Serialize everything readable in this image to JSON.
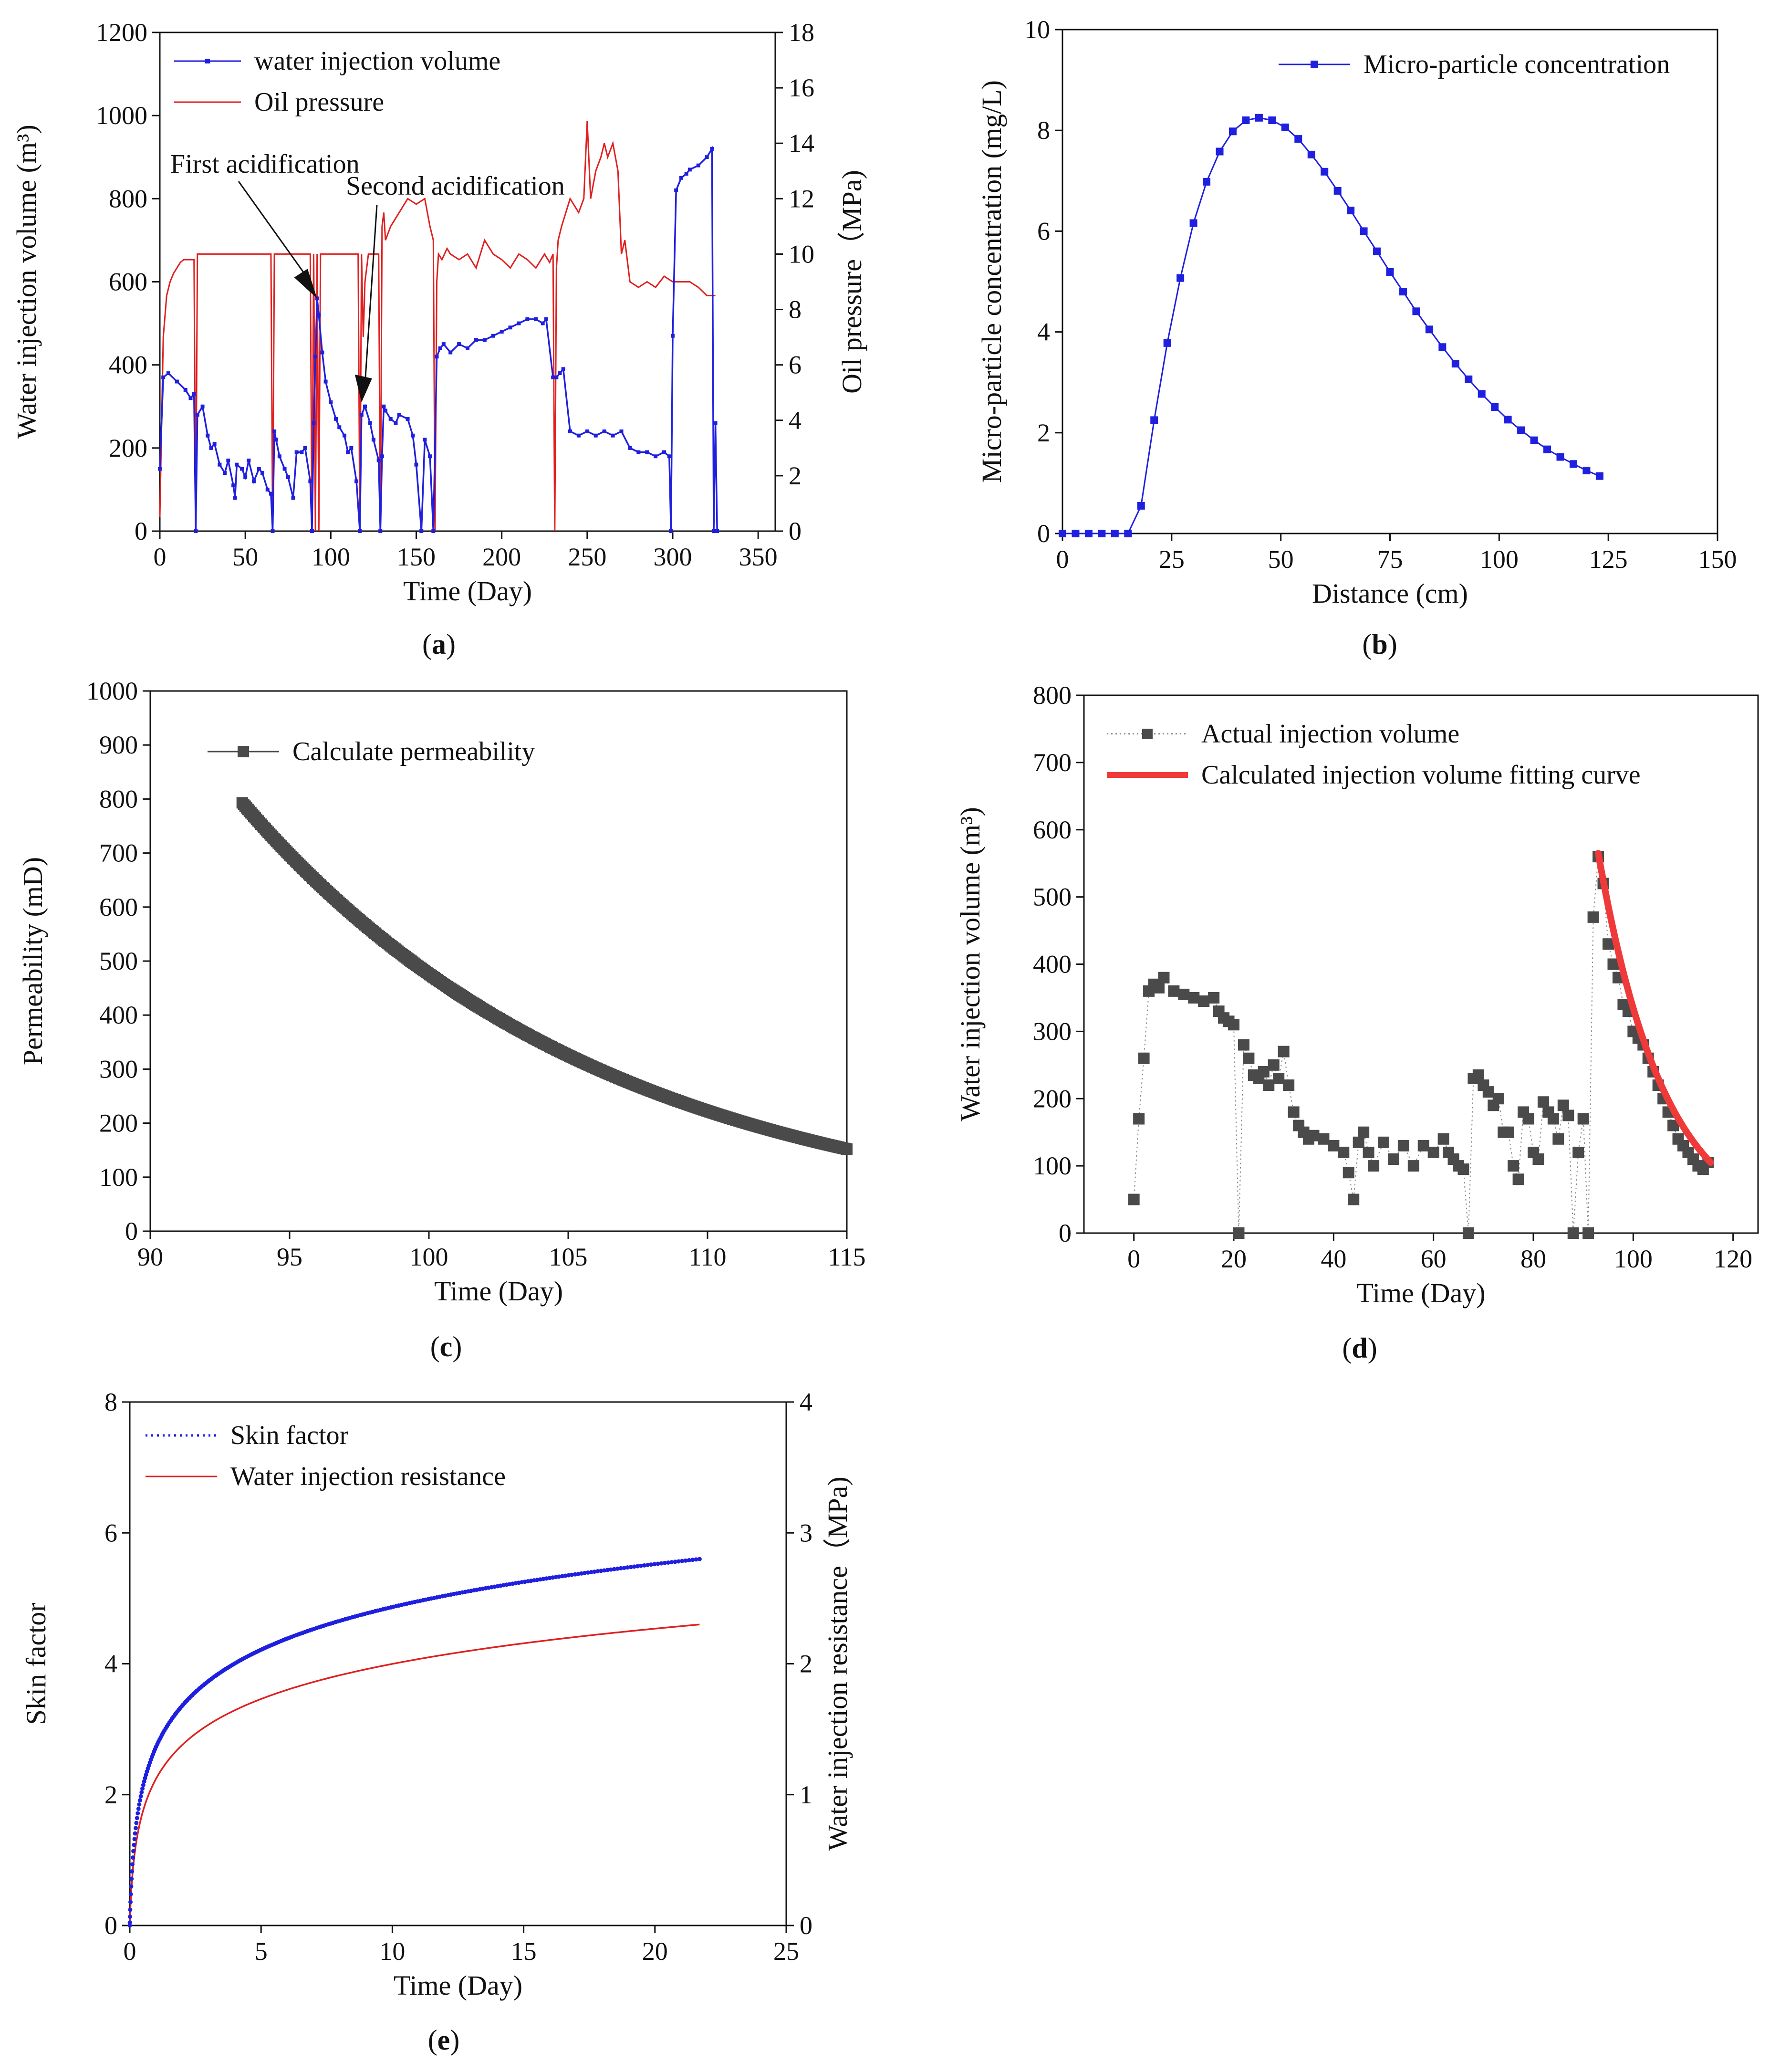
{
  "colors": {
    "blue": "#1f1fe0",
    "red": "#e02020",
    "dark": "#4a4a4a",
    "fit": "#f03a3a",
    "axis": "#111111"
  },
  "chart_data": [
    {
      "id": "a",
      "type": "line",
      "caption": "(a)",
      "xlabel": "Time (Day)",
      "xlim": [
        0,
        360
      ],
      "xticks": [
        0,
        50,
        100,
        150,
        200,
        250,
        300,
        350
      ],
      "ylabel": "Water injection volume (m³)",
      "ylim": [
        0,
        1200
      ],
      "yticks": [
        0,
        200,
        400,
        600,
        800,
        1000,
        1200
      ],
      "y2label": "Oil pressure（MPa)",
      "y2lim": [
        0,
        18
      ],
      "y2ticks": [
        0,
        2,
        4,
        6,
        8,
        10,
        12,
        14,
        16,
        18
      ],
      "legend_position": "top-left",
      "series": [
        {
          "name": "water injection volume",
          "axis": "left",
          "color": "#1f1fe0",
          "marker": true,
          "x": [
            0,
            2,
            5,
            10,
            15,
            18,
            20,
            21,
            22,
            25,
            28,
            30,
            32,
            35,
            38,
            40,
            43,
            44,
            45,
            48,
            50,
            52,
            55,
            58,
            60,
            63,
            65,
            66,
            67,
            68,
            70,
            73,
            75,
            78,
            80,
            83,
            85,
            88,
            89,
            90,
            91,
            92,
            93,
            95,
            97,
            100,
            103,
            105,
            108,
            110,
            112,
            115,
            117,
            118,
            120,
            123,
            125,
            128,
            129,
            130,
            131,
            132,
            135,
            138,
            140,
            145,
            148,
            150,
            153,
            155,
            158,
            160,
            162,
            164,
            166,
            170,
            175,
            180,
            185,
            190,
            195,
            200,
            205,
            210,
            215,
            220,
            224,
            226,
            230,
            232,
            234,
            236,
            240,
            245,
            250,
            255,
            260,
            265,
            270,
            275,
            280,
            285,
            290,
            295,
            298,
            299,
            300,
            302,
            305,
            308,
            310,
            315,
            320,
            323,
            324,
            325,
            326
          ],
          "y": [
            150,
            370,
            380,
            360,
            340,
            320,
            330,
            0,
            280,
            300,
            230,
            200,
            210,
            160,
            140,
            170,
            110,
            80,
            160,
            150,
            130,
            170,
            120,
            150,
            140,
            100,
            90,
            0,
            240,
            220,
            180,
            150,
            130,
            80,
            190,
            190,
            200,
            120,
            0,
            260,
            420,
            560,
            520,
            430,
            360,
            310,
            270,
            250,
            230,
            190,
            200,
            120,
            0,
            280,
            300,
            260,
            220,
            170,
            0,
            180,
            300,
            290,
            270,
            260,
            280,
            270,
            230,
            160,
            0,
            220,
            180,
            0,
            420,
            440,
            450,
            430,
            450,
            440,
            460,
            460,
            470,
            480,
            490,
            500,
            510,
            510,
            500,
            510,
            370,
            370,
            380,
            390,
            240,
            230,
            240,
            230,
            240,
            230,
            240,
            200,
            190,
            190,
            180,
            190,
            180,
            0,
            470,
            820,
            850,
            860,
            870,
            880,
            900,
            920,
            0,
            260,
            0
          ]
        },
        {
          "name": "Oil pressure",
          "axis": "right",
          "color": "#e02020",
          "marker": false,
          "x": [
            0,
            2,
            4,
            6,
            8,
            10,
            12,
            14,
            16,
            18,
            20,
            21,
            22,
            25,
            30,
            40,
            50,
            60,
            65,
            66,
            67,
            68,
            70,
            75,
            80,
            85,
            88,
            89,
            90,
            91,
            92,
            93,
            94,
            95,
            100,
            105,
            110,
            115,
            116,
            117,
            118,
            119,
            120,
            122,
            125,
            128,
            129,
            130,
            131,
            132,
            135,
            140,
            145,
            150,
            155,
            158,
            160,
            161,
            162,
            163,
            165,
            168,
            170,
            175,
            180,
            185,
            190,
            195,
            200,
            205,
            210,
            215,
            220,
            225,
            228,
            230,
            231,
            232,
            233,
            235,
            240,
            245,
            248,
            250,
            252,
            255,
            258,
            260,
            262,
            265,
            268,
            270,
            272,
            275,
            280,
            285,
            290,
            295,
            300,
            305,
            310,
            315,
            320,
            325
          ],
          "y": [
            0.5,
            7,
            8.5,
            9,
            9.3,
            9.5,
            9.7,
            9.8,
            9.8,
            9.8,
            9.8,
            0,
            10,
            10,
            10,
            10,
            10,
            10,
            10,
            0,
            10,
            10,
            10,
            10,
            10,
            10,
            10,
            0,
            10,
            0,
            10,
            0,
            10,
            10,
            10,
            10,
            10,
            10,
            10,
            0,
            10,
            7,
            9,
            10,
            10,
            10,
            0,
            11,
            11.5,
            10.5,
            11,
            11.5,
            12,
            11.8,
            12,
            11,
            10.5,
            0,
            9,
            10,
            9.8,
            10.2,
            10,
            9.8,
            10,
            9.5,
            10.5,
            10,
            9.8,
            9.5,
            10,
            9.8,
            9.5,
            10,
            9.7,
            10,
            0,
            9.5,
            10.5,
            11,
            12,
            11.5,
            12,
            14.8,
            12,
            13,
            13.5,
            14,
            13.5,
            14,
            13,
            10,
            10.5,
            9,
            8.8,
            9,
            8.8,
            9.2,
            9,
            9,
            9,
            8.8,
            8.5,
            8.5
          ]
        }
      ],
      "annotations": [
        {
          "text": "First acidification",
          "at_day": 92,
          "at_value": 560
        },
        {
          "text": "Second acidification",
          "at_day": 118,
          "at_value": 310
        }
      ]
    },
    {
      "id": "b",
      "type": "line",
      "caption": "(b)",
      "xlabel": "Distance (cm)",
      "xlim": [
        0,
        150
      ],
      "xticks": [
        0,
        25,
        50,
        75,
        100,
        125,
        150
      ],
      "ylabel": "Micro-particle concentration (mg/L)",
      "ylim": [
        0,
        10
      ],
      "yticks": [
        0,
        2,
        4,
        6,
        8,
        10
      ],
      "legend_position": "top-right",
      "series": [
        {
          "name": "Micro-particle concentration",
          "color": "#1f1fe0",
          "marker": true,
          "x": [
            0,
            3,
            6,
            9,
            12,
            15,
            18,
            21,
            24,
            27,
            30,
            33,
            36,
            39,
            42,
            45,
            48,
            51,
            54,
            57,
            60,
            63,
            66,
            69,
            72,
            75,
            78,
            81,
            84,
            87,
            90,
            93,
            96,
            99,
            102,
            105,
            108,
            111,
            114,
            117,
            120,
            123
          ],
          "y": [
            0,
            0,
            0,
            0,
            0,
            0,
            0.55,
            2.25,
            3.78,
            5.07,
            6.16,
            6.98,
            7.58,
            7.98,
            8.2,
            8.25,
            8.2,
            8.06,
            7.83,
            7.52,
            7.18,
            6.8,
            6.41,
            6.0,
            5.6,
            5.19,
            4.8,
            4.41,
            4.05,
            3.7,
            3.37,
            3.06,
            2.77,
            2.51,
            2.26,
            2.05,
            1.85,
            1.67,
            1.52,
            1.38,
            1.25,
            1.14
          ]
        }
      ]
    },
    {
      "id": "c",
      "type": "scatter",
      "caption": "(c)",
      "xlabel": "Time (Day)",
      "xlim": [
        90,
        115
      ],
      "xticks": [
        90,
        95,
        100,
        105,
        110,
        115
      ],
      "ylabel": "Permeability (mD)",
      "ylim": [
        0,
        1000
      ],
      "yticks": [
        0,
        100,
        200,
        300,
        400,
        500,
        600,
        700,
        800,
        900,
        1000
      ],
      "legend_position": "top-left",
      "series": [
        {
          "name": "Calculate permeability",
          "color": "#4a4a4a",
          "marker": true,
          "model": {
            "kind": "exponential-decay",
            "x_start": 93.3,
            "x_end": 115,
            "y_start": 793,
            "y_end": 152
          }
        }
      ]
    },
    {
      "id": "d",
      "type": "scatter",
      "caption": "(d)",
      "xlabel": "Time (Day)",
      "xlim": [
        -10,
        125
      ],
      "xticks": [
        0,
        20,
        40,
        60,
        80,
        100,
        120
      ],
      "ylabel": "Water injection volume (m³)",
      "ylim": [
        0,
        800
      ],
      "yticks": [
        0,
        100,
        200,
        300,
        400,
        500,
        600,
        700,
        800
      ],
      "legend_position": "top-left",
      "series": [
        {
          "name": "Actual injection volume",
          "color": "#4a4a4a",
          "marker": true,
          "x": [
            0,
            1,
            2,
            3,
            4,
            5,
            6,
            8,
            10,
            12,
            14,
            16,
            17,
            18,
            19,
            20,
            21,
            22,
            23,
            24,
            25,
            26,
            27,
            28,
            29,
            30,
            31,
            32,
            33,
            34,
            35,
            36,
            38,
            40,
            42,
            43,
            44,
            45,
            46,
            47,
            48,
            50,
            52,
            54,
            56,
            58,
            60,
            62,
            63,
            64,
            65,
            66,
            67,
            68,
            69,
            70,
            71,
            72,
            73,
            74,
            75,
            76,
            77,
            78,
            79,
            80,
            81,
            82,
            83,
            84,
            85,
            86,
            87,
            88,
            89,
            90,
            91,
            92,
            93,
            94,
            95,
            96,
            97,
            98,
            99,
            100,
            101,
            102,
            103,
            104,
            105,
            106,
            107,
            108,
            109,
            110,
            111,
            112,
            113,
            114,
            115
          ],
          "y": [
            50,
            170,
            260,
            360,
            370,
            365,
            380,
            360,
            355,
            350,
            345,
            350,
            330,
            320,
            315,
            310,
            0,
            280,
            260,
            235,
            230,
            240,
            220,
            250,
            230,
            270,
            220,
            180,
            160,
            150,
            140,
            145,
            140,
            130,
            120,
            90,
            50,
            135,
            150,
            120,
            100,
            135,
            110,
            130,
            100,
            130,
            120,
            140,
            120,
            110,
            100,
            95,
            0,
            230,
            235,
            220,
            210,
            190,
            200,
            150,
            150,
            100,
            80,
            180,
            170,
            120,
            110,
            195,
            180,
            170,
            140,
            190,
            175,
            0,
            120,
            170,
            0,
            470,
            560,
            520,
            430,
            400,
            380,
            340,
            330,
            300,
            290,
            280,
            260,
            240,
            220,
            200,
            180,
            160,
            140,
            130,
            120,
            110,
            100,
            95,
            105
          ]
        },
        {
          "name": "Calculated injection volume fitting curve",
          "color": "#f03a3a",
          "marker": false,
          "model": {
            "kind": "exponential-decay",
            "x_start": 93,
            "x_end": 115.5,
            "y_start": 565,
            "y_end": 105
          }
        }
      ]
    },
    {
      "id": "e",
      "type": "line",
      "caption": "(e)",
      "xlabel": "Time (Day)",
      "xlim": [
        0,
        25
      ],
      "xticks": [
        0,
        5,
        10,
        15,
        20,
        25
      ],
      "ylabel": "Skin factor",
      "ylim": [
        0,
        8
      ],
      "yticks": [
        0,
        2,
        4,
        6,
        8
      ],
      "y2label": "Water injection resistance（MPa)",
      "y2lim": [
        0,
        4
      ],
      "y2ticks": [
        0,
        1,
        2,
        3,
        4
      ],
      "legend_position": "top-left",
      "series": [
        {
          "name": "Skin factor",
          "axis": "left",
          "color": "#1f1fe0",
          "marker": true,
          "style": "dotted",
          "model": {
            "kind": "logarithmic",
            "x_end": 21.7,
            "y_end": 5.6
          }
        },
        {
          "name": "Water injection resistance",
          "axis": "right",
          "color": "#e02020",
          "marker": false,
          "model": {
            "kind": "logarithmic",
            "x_end": 21.7,
            "y_end": 2.3
          }
        }
      ]
    }
  ]
}
